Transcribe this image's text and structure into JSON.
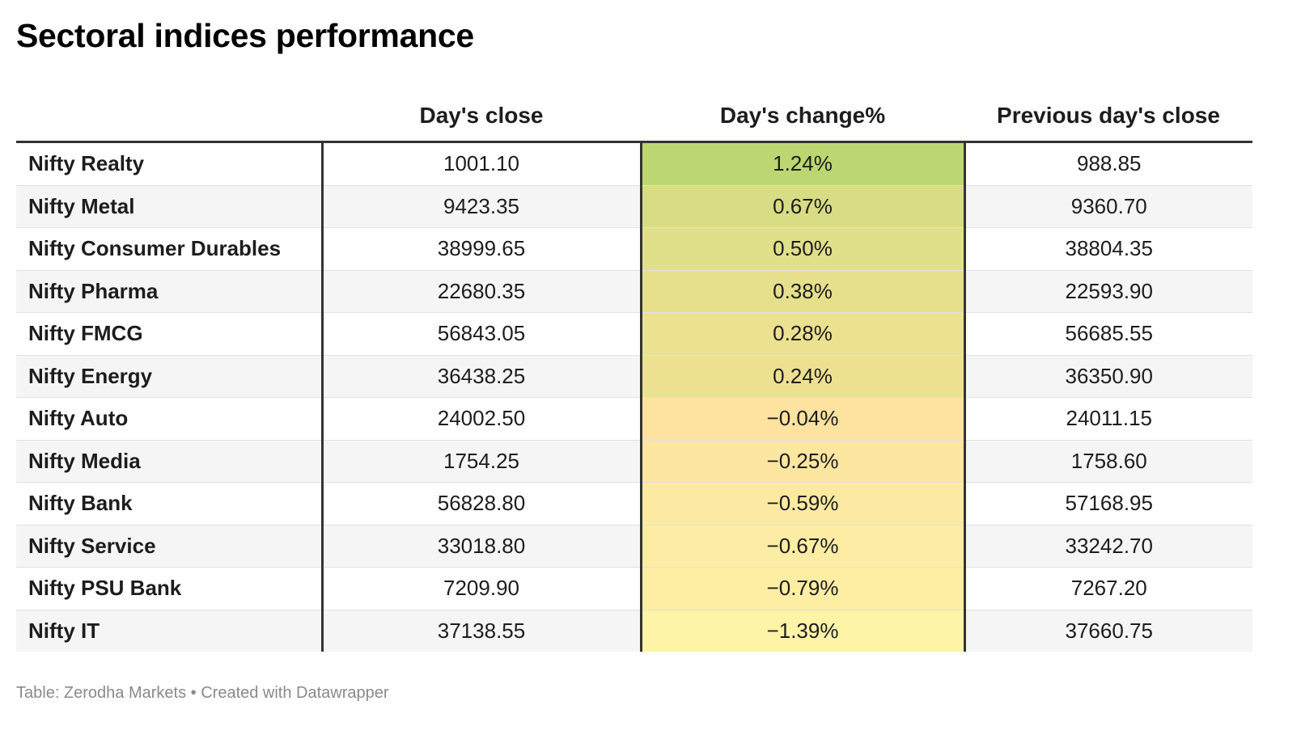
{
  "title": "Sectoral indices performance",
  "chart_data": {
    "type": "table",
    "columns": [
      "",
      "Day's close",
      "Day's change%",
      "Previous day's close"
    ],
    "rows": [
      {
        "name": "Nifty Realty",
        "close": "1001.10",
        "change": "1.24%",
        "change_value": 1.24,
        "prev": "988.85",
        "color": "#bcd672"
      },
      {
        "name": "Nifty Metal",
        "close": "9423.35",
        "change": "0.67%",
        "change_value": 0.67,
        "prev": "9360.70",
        "color": "#d8dc84"
      },
      {
        "name": "Nifty Consumer Durables",
        "close": "38999.65",
        "change": "0.50%",
        "change_value": 0.5,
        "prev": "38804.35",
        "color": "#e0df8a"
      },
      {
        "name": "Nifty Pharma",
        "close": "22680.35",
        "change": "0.38%",
        "change_value": 0.38,
        "prev": "22593.90",
        "color": "#e6e08d"
      },
      {
        "name": "Nifty FMCG",
        "close": "56843.05",
        "change": "0.28%",
        "change_value": 0.28,
        "prev": "56685.55",
        "color": "#ebe190"
      },
      {
        "name": "Nifty Energy",
        "close": "36438.25",
        "change": "0.24%",
        "change_value": 0.24,
        "prev": "36350.90",
        "color": "#ede191"
      },
      {
        "name": "Nifty Auto",
        "close": "24002.50",
        "change": "−0.04%",
        "change_value": -0.04,
        "prev": "24011.15",
        "color": "#fde2a0"
      },
      {
        "name": "Nifty Media",
        "close": "1754.25",
        "change": "−0.25%",
        "change_value": -0.25,
        "prev": "1758.60",
        "color": "#fde6a0"
      },
      {
        "name": "Nifty Bank",
        "close": "56828.80",
        "change": "−0.59%",
        "change_value": -0.59,
        "prev": "57168.95",
        "color": "#fdeaa2"
      },
      {
        "name": "Nifty Service",
        "close": "33018.80",
        "change": "−0.67%",
        "change_value": -0.67,
        "prev": "33242.70",
        "color": "#fdeca3"
      },
      {
        "name": "Nifty PSU Bank",
        "close": "7209.90",
        "change": "−0.79%",
        "change_value": -0.79,
        "prev": "7267.20",
        "color": "#fdeea4"
      },
      {
        "name": "Nifty IT",
        "close": "37138.55",
        "change": "−1.39%",
        "change_value": -1.39,
        "prev": "37660.75",
        "color": "#fef4a8"
      }
    ]
  },
  "footer": "Table: Zerodha Markets • Created with Datawrapper"
}
